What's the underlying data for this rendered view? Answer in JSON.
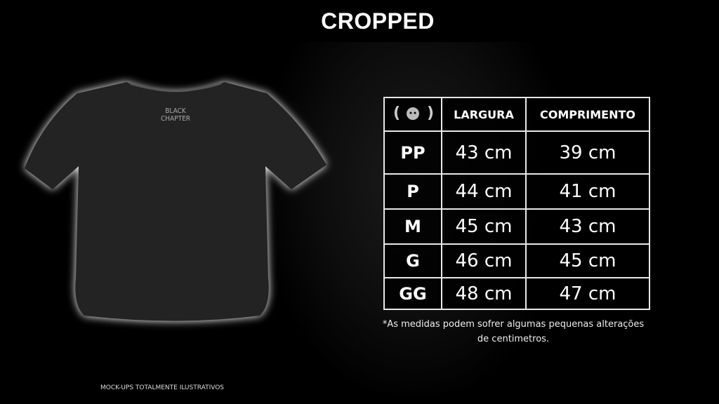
{
  "title": "CROPPED",
  "shirt_print": [
    "BLACK",
    "CHAPTER"
  ],
  "table": {
    "header_icon": "cat-logo-icon",
    "headers": [
      "LARGURA",
      "COMPRIMENTO"
    ],
    "rows": [
      {
        "size": "PP",
        "largura": "43 cm",
        "comprimento": "39 cm"
      },
      {
        "size": "P",
        "largura": "44 cm",
        "comprimento": "41 cm"
      },
      {
        "size": "M",
        "largura": "45 cm",
        "comprimento": "43 cm"
      },
      {
        "size": "G",
        "largura": "46 cm",
        "comprimento": "45 cm"
      },
      {
        "size": "GG",
        "largura": "48 cm",
        "comprimento": "47 cm"
      }
    ]
  },
  "note": "*As medidas podem sofrer algumas pequenas alterações de centimetros.",
  "footer": "MOCK-UPS TOTALMENTE ILUSTRATIVOS"
}
